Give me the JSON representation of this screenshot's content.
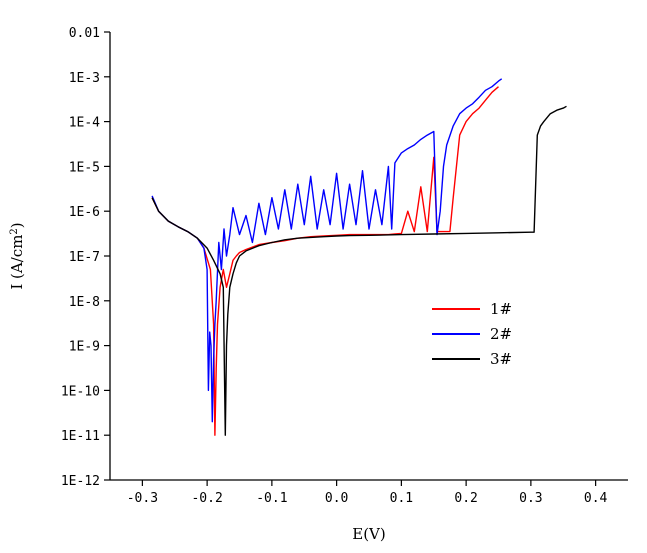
{
  "chart_data": {
    "type": "line",
    "title": "",
    "xlabel": "E(V)",
    "ylabel": "I (A/cm²)",
    "ylabel_parts": {
      "prefix": "I  (A/cm",
      "superscript": "2",
      "suffix": ")"
    },
    "xscale": "linear",
    "yscale": "log",
    "xlim": [
      -0.35,
      0.45
    ],
    "ylim": [
      1e-12,
      0.01
    ],
    "x_ticks": [
      -0.3,
      -0.2,
      -0.1,
      0.0,
      0.1,
      0.2,
      0.3,
      0.4
    ],
    "x_tick_labels": [
      "-0.3",
      "-0.2",
      "-0.1",
      "0.0",
      "0.1",
      "0.2",
      "0.3",
      "0.4"
    ],
    "y_ticks": [
      1e-12,
      1e-11,
      1e-10,
      1e-09,
      1e-08,
      1e-07,
      1e-06,
      1e-05,
      0.0001,
      0.001,
      0.01
    ],
    "y_tick_labels": [
      "1E-12",
      "1E-11",
      "1E-10",
      "1E-9",
      "1E-8",
      "1E-7",
      "1E-6",
      "1E-5",
      "1E-4",
      "1E-3",
      "0.01"
    ],
    "grid": false,
    "legend_position": "center-right",
    "series": [
      {
        "name": "1#",
        "color": "#ff0000",
        "x": [
          -0.285,
          -0.275,
          -0.26,
          -0.245,
          -0.23,
          -0.215,
          -0.205,
          -0.195,
          -0.19,
          -0.188,
          -0.186,
          -0.184,
          -0.18,
          -0.175,
          -0.17,
          -0.165,
          -0.16,
          -0.155,
          -0.15,
          -0.14,
          -0.12,
          -0.1,
          -0.08,
          -0.06,
          -0.04,
          -0.02,
          0.0,
          0.02,
          0.04,
          0.06,
          0.08,
          0.09,
          0.1,
          0.11,
          0.12,
          0.13,
          0.14,
          0.15,
          0.155,
          0.16,
          0.165,
          0.17,
          0.175,
          0.18,
          0.19,
          0.2,
          0.21,
          0.22,
          0.23,
          0.24,
          0.25
        ],
        "y": [
          2e-06,
          1e-06,
          6e-07,
          4.5e-07,
          3.5e-07,
          2.5e-07,
          1.5e-07,
          5e-08,
          3e-09,
          1e-11,
          3e-10,
          3e-09,
          2e-08,
          5e-08,
          2e-08,
          4e-08,
          8e-08,
          1e-07,
          1.2e-07,
          1.4e-07,
          1.8e-07,
          2e-07,
          2.2e-07,
          2.5e-07,
          2.7e-07,
          2.8e-07,
          2.9e-07,
          3e-07,
          3e-07,
          3e-07,
          3e-07,
          3.1e-07,
          3.2e-07,
          1e-06,
          3.5e-07,
          3.5e-06,
          3.5e-07,
          1.6e-05,
          3.5e-07,
          3.5e-07,
          3.5e-07,
          3.5e-07,
          3.5e-07,
          2e-06,
          5e-05,
          0.0001,
          0.00015,
          0.0002,
          0.0003,
          0.00045,
          0.0006
        ]
      },
      {
        "name": "2#",
        "color": "#0000ff",
        "x": [
          -0.285,
          -0.275,
          -0.26,
          -0.245,
          -0.23,
          -0.215,
          -0.205,
          -0.2,
          -0.198,
          -0.196,
          -0.194,
          -0.192,
          -0.19,
          -0.188,
          -0.186,
          -0.182,
          -0.178,
          -0.174,
          -0.17,
          -0.165,
          -0.16,
          -0.15,
          -0.14,
          -0.13,
          -0.12,
          -0.11,
          -0.1,
          -0.09,
          -0.08,
          -0.07,
          -0.06,
          -0.05,
          -0.04,
          -0.03,
          -0.02,
          -0.01,
          0.0,
          0.01,
          0.02,
          0.03,
          0.04,
          0.05,
          0.06,
          0.07,
          0.08,
          0.085,
          0.09,
          0.1,
          0.11,
          0.12,
          0.13,
          0.14,
          0.15,
          0.155,
          0.16,
          0.165,
          0.17,
          0.18,
          0.19,
          0.2,
          0.21,
          0.22,
          0.23,
          0.24,
          0.25,
          0.255
        ],
        "y": [
          2.2e-06,
          1e-06,
          6e-07,
          4.5e-07,
          3.5e-07,
          2.5e-07,
          1.5e-07,
          5e-08,
          1e-10,
          2e-09,
          1e-09,
          2e-11,
          5e-10,
          3e-09,
          1e-08,
          2e-07,
          5e-08,
          4e-07,
          1e-07,
          3e-07,
          1.2e-06,
          3e-07,
          8e-07,
          2e-07,
          1.5e-06,
          3e-07,
          2e-06,
          4e-07,
          3e-06,
          4e-07,
          4e-06,
          5e-07,
          6e-06,
          4e-07,
          3e-06,
          5e-07,
          7e-06,
          4e-07,
          4e-06,
          5e-07,
          8e-06,
          4e-07,
          3e-06,
          5e-07,
          1e-05,
          4e-07,
          1.2e-05,
          2e-05,
          2.5e-05,
          3e-05,
          4e-05,
          5e-05,
          6e-05,
          3e-07,
          1e-06,
          1e-05,
          3e-05,
          8e-05,
          0.00015,
          0.0002,
          0.00025,
          0.00035,
          0.0005,
          0.0006,
          0.0008,
          0.0009
        ]
      },
      {
        "name": "3#",
        "color": "#000000",
        "x": [
          -0.285,
          -0.275,
          -0.26,
          -0.245,
          -0.23,
          -0.215,
          -0.2,
          -0.19,
          -0.18,
          -0.175,
          -0.172,
          -0.17,
          -0.168,
          -0.165,
          -0.16,
          -0.155,
          -0.15,
          -0.14,
          -0.12,
          -0.1,
          -0.08,
          -0.06,
          -0.04,
          -0.02,
          0.0,
          0.02,
          0.05,
          0.1,
          0.15,
          0.2,
          0.25,
          0.3,
          0.305,
          0.31,
          0.315,
          0.32,
          0.33,
          0.34,
          0.35,
          0.355
        ],
        "y": [
          2e-06,
          1e-06,
          6e-07,
          4.5e-07,
          3.5e-07,
          2.5e-07,
          1.5e-07,
          8e-08,
          4e-08,
          2e-08,
          1e-11,
          1e-09,
          5e-09,
          2e-08,
          4e-08,
          7e-08,
          1e-07,
          1.3e-07,
          1.7e-07,
          2e-07,
          2.3e-07,
          2.5e-07,
          2.6e-07,
          2.7e-07,
          2.8e-07,
          2.85e-07,
          2.9e-07,
          3e-07,
          3.1e-07,
          3.2e-07,
          3.3e-07,
          3.4e-07,
          3.4e-07,
          5e-05,
          8e-05,
          0.0001,
          0.00015,
          0.00018,
          0.0002,
          0.00022
        ]
      }
    ]
  }
}
